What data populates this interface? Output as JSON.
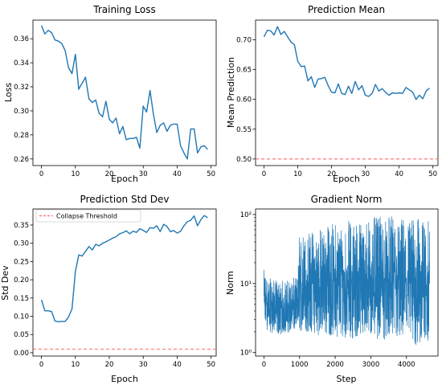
{
  "chart_data": [
    {
      "type": "line",
      "title": "Training Loss",
      "xlabel": "Epoch",
      "ylabel": "Loss",
      "xlim": [
        -2.5,
        51.5
      ],
      "ylim": [
        0.2545,
        0.3755
      ],
      "x_ticks": [
        0,
        10,
        20,
        30,
        40,
        50
      ],
      "y_ticks": [
        0.26,
        0.28,
        0.3,
        0.32,
        0.34,
        0.36
      ],
      "y_tick_labels": [
        "0.26",
        "0.28",
        "0.30",
        "0.32",
        "0.34",
        "0.36"
      ],
      "x": [
        0,
        1,
        2,
        3,
        4,
        5,
        6,
        7,
        8,
        9,
        10,
        11,
        12,
        13,
        14,
        15,
        16,
        17,
        18,
        19,
        20,
        21,
        22,
        23,
        24,
        25,
        26,
        27,
        28,
        29,
        30,
        31,
        32,
        33,
        34,
        35,
        36,
        37,
        38,
        39,
        40,
        41,
        42,
        43,
        44,
        45,
        46,
        47,
        48,
        49
      ],
      "series": [
        {
          "color": "#1f77b4",
          "values": [
            0.371,
            0.364,
            0.367,
            0.365,
            0.359,
            0.358,
            0.356,
            0.35,
            0.336,
            0.331,
            0.347,
            0.318,
            0.323,
            0.328,
            0.31,
            0.307,
            0.309,
            0.298,
            0.295,
            0.308,
            0.293,
            0.29,
            0.294,
            0.281,
            0.287,
            0.276,
            0.277,
            0.277,
            0.278,
            0.269,
            0.304,
            0.299,
            0.317,
            0.297,
            0.282,
            0.288,
            0.29,
            0.283,
            0.288,
            0.289,
            0.289,
            0.271,
            0.265,
            0.26,
            0.285,
            0.285,
            0.265,
            0.27,
            0.271,
            0.268
          ]
        }
      ]
    },
    {
      "type": "line",
      "title": "Prediction Mean",
      "xlabel": "Epoch",
      "ylabel": "Mean Prediction",
      "xlim": [
        -2.5,
        51.5
      ],
      "ylim": [
        0.489,
        0.733
      ],
      "x_ticks": [
        0,
        10,
        20,
        30,
        40,
        50
      ],
      "y_ticks": [
        0.5,
        0.55,
        0.6,
        0.65,
        0.7
      ],
      "y_tick_labels": [
        "0.50",
        "0.55",
        "0.60",
        "0.65",
        "0.70"
      ],
      "reference_line": {
        "y": 0.5,
        "color": "#ff6b6b",
        "style": "dashed"
      },
      "x": [
        0,
        1,
        2,
        3,
        4,
        5,
        6,
        7,
        8,
        9,
        10,
        11,
        12,
        13,
        14,
        15,
        16,
        17,
        18,
        19,
        20,
        21,
        22,
        23,
        24,
        25,
        26,
        27,
        28,
        29,
        30,
        31,
        32,
        33,
        34,
        35,
        36,
        37,
        38,
        39,
        40,
        41,
        42,
        43,
        44,
        45,
        46,
        47,
        48,
        49
      ],
      "series": [
        {
          "color": "#1f77b4",
          "values": [
            0.705,
            0.716,
            0.715,
            0.708,
            0.722,
            0.709,
            0.714,
            0.705,
            0.696,
            0.692,
            0.664,
            0.655,
            0.656,
            0.631,
            0.638,
            0.62,
            0.634,
            0.635,
            0.637,
            0.623,
            0.612,
            0.611,
            0.626,
            0.61,
            0.608,
            0.622,
            0.61,
            0.63,
            0.616,
            0.623,
            0.607,
            0.605,
            0.61,
            0.625,
            0.614,
            0.618,
            0.612,
            0.607,
            0.611,
            0.61,
            0.611,
            0.61,
            0.62,
            0.616,
            0.612,
            0.6,
            0.607,
            0.601,
            0.614,
            0.619
          ]
        }
      ]
    },
    {
      "type": "line",
      "title": "Prediction Std Dev",
      "xlabel": "Epoch",
      "ylabel": "Std Dev",
      "xlim": [
        -2.5,
        51.5
      ],
      "ylim": [
        -0.009,
        0.394
      ],
      "x_ticks": [
        0,
        10,
        20,
        30,
        40,
        50
      ],
      "y_ticks": [
        0.0,
        0.05,
        0.1,
        0.15,
        0.2,
        0.25,
        0.3,
        0.35
      ],
      "y_tick_labels": [
        "0.00",
        "0.05",
        "0.10",
        "0.15",
        "0.20",
        "0.25",
        "0.30",
        "0.35"
      ],
      "reference_line": {
        "y": 0.01,
        "color": "#ff6b6b",
        "style": "dashed",
        "label": "Collapse Threshold"
      },
      "legend": {
        "position": "top-left",
        "entries": [
          "Collapse Threshold"
        ]
      },
      "x": [
        0,
        1,
        2,
        3,
        4,
        5,
        6,
        7,
        8,
        9,
        10,
        11,
        12,
        13,
        14,
        15,
        16,
        17,
        18,
        19,
        20,
        21,
        22,
        23,
        24,
        25,
        26,
        27,
        28,
        29,
        30,
        31,
        32,
        33,
        34,
        35,
        36,
        37,
        38,
        39,
        40,
        41,
        42,
        43,
        44,
        45,
        46,
        47,
        48,
        49
      ],
      "series": [
        {
          "color": "#1f77b4",
          "values": [
            0.145,
            0.115,
            0.115,
            0.113,
            0.087,
            0.085,
            0.086,
            0.086,
            0.098,
            0.12,
            0.222,
            0.268,
            0.265,
            0.278,
            0.291,
            0.282,
            0.297,
            0.293,
            0.3,
            0.304,
            0.309,
            0.314,
            0.318,
            0.326,
            0.329,
            0.334,
            0.326,
            0.333,
            0.33,
            0.34,
            0.335,
            0.33,
            0.343,
            0.341,
            0.348,
            0.332,
            0.352,
            0.346,
            0.332,
            0.335,
            0.328,
            0.333,
            0.348,
            0.359,
            0.363,
            0.375,
            0.348,
            0.365,
            0.376,
            0.37
          ]
        }
      ]
    },
    {
      "type": "line",
      "title": "Gradient Norm",
      "xlabel": "Step",
      "ylabel": "Norm",
      "y_scale": "log",
      "xlim": [
        -235,
        4885
      ],
      "ylim_log10": [
        -0.05,
        2.08
      ],
      "x_ticks": [
        0,
        1000,
        2000,
        3000,
        4000
      ],
      "y_ticks_log10": [
        0,
        1,
        2
      ],
      "y_tick_labels": [
        "10⁰",
        "10¹",
        "10²"
      ],
      "series": [
        {
          "color": "#1f77b4",
          "description_free_envelope": {
            "steps": [
              0,
              150,
              400,
              800,
              950,
              1000,
              1500,
              2000,
              2500,
              3000,
              3500,
              4000,
              4300,
              4650
            ],
            "median": [
              6.0,
              4.8,
              4.2,
              4.6,
              5.0,
              9.0,
              10.0,
              11.0,
              11.0,
              11.5,
              11.0,
              11.0,
              11.0,
              11.0
            ],
            "high": [
              16,
              12,
              11,
              12,
              13,
              55,
              65,
              80,
              85,
              90,
              95,
              95,
              90,
              80
            ],
            "low": [
              2.2,
              2.0,
              1.8,
              2.0,
              2.0,
              2.0,
              1.8,
              1.7,
              1.6,
              1.6,
              1.5,
              1.4,
              1.1,
              1.5
            ]
          }
        }
      ]
    }
  ]
}
